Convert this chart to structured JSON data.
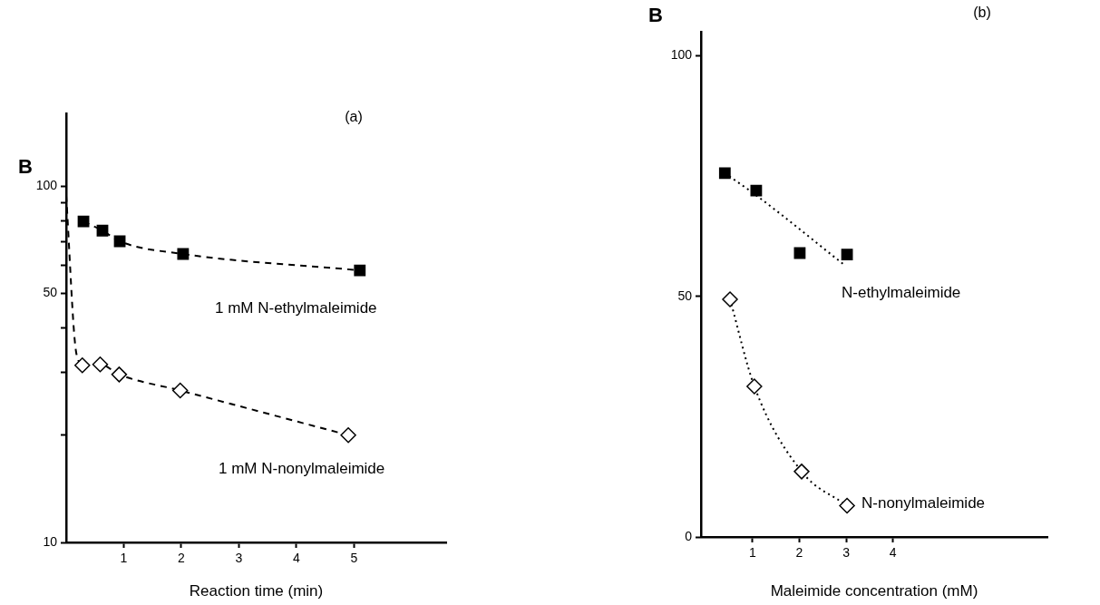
{
  "chart_data": [
    {
      "type": "line",
      "title": "(a)",
      "ylabel": "B",
      "xlabel": "Reaction time (min)",
      "log": "y",
      "grid": false,
      "legend": false,
      "xlim": [
        0,
        6.6
      ],
      "xticks": [
        1,
        2,
        3,
        4,
        5
      ],
      "ylim": [
        10,
        160
      ],
      "yticks": [
        10,
        {
          "value": 20,
          "label": null
        },
        {
          "value": 30,
          "label": null
        },
        {
          "value": 40,
          "label": null
        },
        50,
        {
          "value": 60,
          "label": null
        },
        {
          "value": 70,
          "label": null
        },
        {
          "value": 80,
          "label": null
        },
        {
          "value": 90,
          "label": null
        },
        100
      ],
      "series": [
        {
          "name": "1 mM N-ethylmaleimide",
          "color": "#000000",
          "marker": "square",
          "line_style": "dashed",
          "x": [
            0.3,
            0.63,
            0.93,
            2.03,
            5.1
          ],
          "values": [
            79.6,
            75,
            70,
            64.5,
            58
          ]
        },
        {
          "name": "1 mM N-nonylmaleimide",
          "color": "#000000",
          "marker": "diamond",
          "line_style": "dashed",
          "x": [
            0.28,
            0.59,
            0.92,
            1.98,
            4.9
          ],
          "values": [
            31.4,
            31.6,
            29.6,
            26.7,
            20
          ]
        },
        {
          "color": "#000000",
          "marker": "none",
          "line_style": "dashed",
          "x": [
            0,
            0.17,
            0.28
          ],
          "values": [
            94,
            34.4,
            31.4
          ]
        }
      ]
    },
    {
      "type": "scatter",
      "title": "(b)",
      "ylabel": "B",
      "xlabel": "Maleimide concentration (mM)",
      "grid": false,
      "legend": false,
      "xlim": [
        -0.1,
        7.3
      ],
      "xticks": [
        1,
        2,
        3,
        4
      ],
      "ylim": [
        0,
        105
      ],
      "yticks": [
        0,
        50,
        100
      ],
      "series": [
        {
          "name": "N-ethylmaleimide",
          "color": "#000000",
          "marker": "square",
          "x": [
            0.41,
            1.08,
            2.01,
            3.02
          ],
          "values": [
            75.6,
            72,
            59,
            58.7
          ]
        },
        {
          "name": "N-nonylmaleimide",
          "type": "line",
          "color": "#000000",
          "marker": "diamond",
          "line_style": "dotted",
          "x": [
            0.52,
            1.04,
            2.05,
            3.02
          ],
          "values": [
            49.4,
            31.3,
            13.6,
            6.5
          ]
        },
        {
          "type": "line",
          "color": "#000000",
          "marker": "none",
          "line_style": "dotted",
          "x": [
            0.41,
            1.08,
            2.94
          ],
          "values": [
            75.6,
            71,
            56.7
          ]
        }
      ]
    }
  ]
}
